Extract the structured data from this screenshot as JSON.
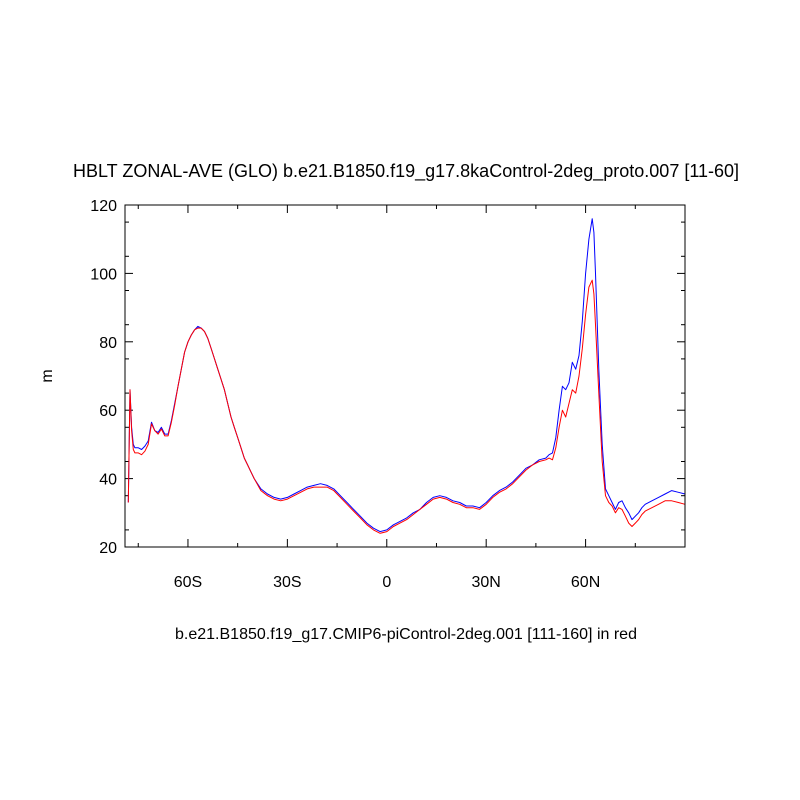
{
  "chart_data": {
    "type": "line",
    "title": "HBLT ZONAL-AVE (GLO) b.e21.B1850.f19_g17.8kaControl-2deg_proto.007 [11-60]",
    "subtitle": "b.e21.B1850.f19_g17.CMIP6-piControl-2deg.001 [111-160] in red",
    "ylabel": "m",
    "xlim": [
      -79,
      90
    ],
    "ylim": [
      20,
      120
    ],
    "x_ticks": [
      -60,
      -30,
      0,
      30,
      60
    ],
    "x_tick_labels": [
      "60S",
      "30S",
      "0",
      "30N",
      "60N"
    ],
    "y_ticks": [
      20,
      40,
      60,
      80,
      100,
      120
    ],
    "y_tick_labels": [
      "20",
      "40",
      "60",
      "80",
      "100",
      "120"
    ],
    "grid": false,
    "series": [
      {
        "color": "#0000ff",
        "x": [
          -78,
          -77.5,
          -77,
          -76.5,
          -76,
          -75,
          -74,
          -73,
          -72,
          -71,
          -70,
          -69,
          -68,
          -67,
          -66,
          -65,
          -64,
          -63,
          -62,
          -61,
          -60,
          -59,
          -58,
          -57,
          -56,
          -55,
          -54,
          -53,
          -52,
          -51,
          -50,
          -49,
          -48,
          -47,
          -46,
          -45,
          -44,
          -43,
          -42,
          -41,
          -40,
          -38,
          -36,
          -34,
          -32,
          -30,
          -28,
          -26,
          -24,
          -22,
          -20,
          -18,
          -16,
          -14,
          -12,
          -10,
          -8,
          -6,
          -4,
          -2,
          0,
          2,
          4,
          6,
          8,
          10,
          12,
          14,
          16,
          18,
          20,
          22,
          24,
          26,
          28,
          30,
          32,
          34,
          36,
          38,
          40,
          42,
          44,
          46,
          48,
          49,
          50,
          51,
          52,
          53,
          54,
          55,
          56,
          57,
          58,
          59,
          60,
          61,
          62,
          62.5,
          63,
          64,
          65,
          66,
          67,
          68,
          69,
          70,
          71,
          72,
          73,
          74,
          75,
          76,
          77,
          78,
          80,
          82,
          84,
          86,
          88,
          90
        ],
        "y": [
          33,
          66,
          55,
          50,
          49,
          49,
          48.5,
          49.5,
          51,
          56.5,
          54,
          53.5,
          55,
          53,
          53,
          57,
          62,
          67,
          72,
          77,
          80,
          82,
          83.5,
          84.5,
          84,
          83,
          81,
          78,
          75,
          72,
          69,
          66,
          62,
          58,
          55,
          52,
          49,
          46,
          44,
          42,
          40,
          37,
          35.5,
          34.5,
          34,
          34.5,
          35.5,
          36.5,
          37.5,
          38,
          38.5,
          38,
          37,
          35,
          33,
          31,
          29,
          27,
          25.5,
          24.5,
          25,
          26.5,
          27.5,
          28.5,
          30,
          31,
          33,
          34.5,
          35,
          34.5,
          33.5,
          33,
          32,
          32,
          31.5,
          33,
          35,
          36.5,
          37.5,
          39,
          41,
          43,
          44,
          45.5,
          46,
          47,
          47.5,
          52,
          60,
          67,
          66,
          68,
          74,
          72,
          76,
          86,
          100,
          110,
          116,
          112,
          100,
          72,
          50,
          37,
          35,
          33,
          31,
          33,
          33.5,
          31.5,
          30,
          28,
          29,
          30,
          31.5,
          32.5,
          33.5,
          34.5,
          35.5,
          36.5,
          36,
          35.5
        ]
      },
      {
        "color": "#ff0000",
        "x": [
          -78,
          -77.5,
          -77,
          -76.5,
          -76,
          -75,
          -74,
          -73,
          -72,
          -71,
          -70,
          -69,
          -68,
          -67,
          -66,
          -65,
          -64,
          -63,
          -62,
          -61,
          -60,
          -59,
          -58,
          -57,
          -56,
          -55,
          -54,
          -53,
          -52,
          -51,
          -50,
          -49,
          -48,
          -47,
          -46,
          -45,
          -44,
          -43,
          -42,
          -41,
          -40,
          -38,
          -36,
          -34,
          -32,
          -30,
          -28,
          -26,
          -24,
          -22,
          -20,
          -18,
          -16,
          -14,
          -12,
          -10,
          -8,
          -6,
          -4,
          -2,
          0,
          2,
          4,
          6,
          8,
          10,
          12,
          14,
          16,
          18,
          20,
          22,
          24,
          26,
          28,
          30,
          32,
          34,
          36,
          38,
          40,
          42,
          44,
          46,
          48,
          49,
          50,
          51,
          52,
          53,
          54,
          55,
          56,
          57,
          58,
          59,
          60,
          61,
          62,
          62.5,
          63,
          64,
          65,
          66,
          67,
          68,
          69,
          70,
          71,
          72,
          73,
          74,
          75,
          76,
          77,
          78,
          80,
          82,
          84,
          86,
          88,
          90
        ],
        "y": [
          33,
          66,
          54,
          48.5,
          47.5,
          47.5,
          47,
          48,
          50,
          56,
          54,
          53,
          54.5,
          52.5,
          52.5,
          56.5,
          61.5,
          67,
          72,
          77,
          80,
          82,
          83.5,
          84,
          84,
          83,
          81,
          78,
          75,
          72,
          69,
          66,
          62,
          58,
          55,
          52,
          49,
          46,
          44,
          42,
          40,
          36.5,
          35,
          34,
          33.5,
          34,
          35,
          36,
          37,
          37.5,
          37.5,
          37.5,
          36.5,
          34.5,
          32.5,
          30.5,
          28.5,
          26.5,
          25,
          24,
          24.5,
          26,
          27,
          28,
          29.5,
          31,
          32.5,
          34,
          34.5,
          34,
          33,
          32.5,
          31.5,
          31.5,
          31,
          32.5,
          34.5,
          36,
          37,
          38.5,
          40.5,
          42.5,
          44,
          45,
          45.5,
          46,
          45.5,
          49,
          55,
          60,
          58,
          62,
          66,
          65,
          70,
          78,
          88,
          96,
          98,
          94,
          85,
          65,
          45,
          35,
          33,
          32,
          30,
          31.5,
          31,
          29,
          27,
          26,
          27,
          28,
          29.5,
          30.5,
          31.5,
          32.5,
          33.5,
          33.5,
          33,
          32.5
        ]
      }
    ]
  }
}
